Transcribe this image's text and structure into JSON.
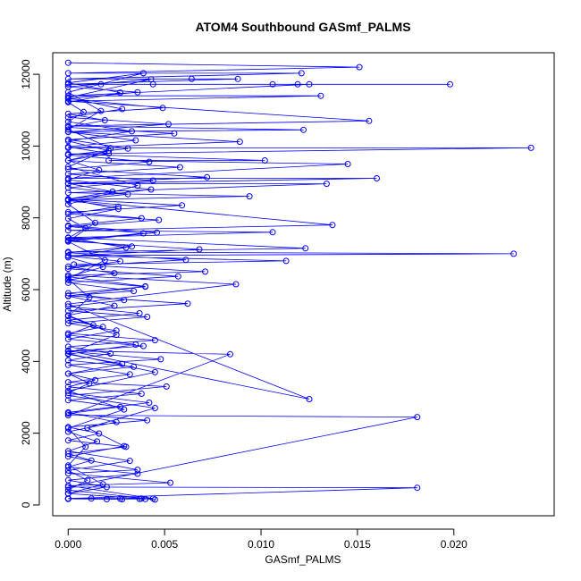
{
  "chart_data": {
    "type": "scatter",
    "title": "ATOM4 Southbound GASmf_PALMS",
    "xlabel": "GASmf_PALMS",
    "ylabel": "Altitude (m)",
    "xlim": [
      -0.0008,
      0.0252
    ],
    "ylim": [
      -300,
      12600
    ],
    "x_ticks": [
      0.0,
      0.005,
      0.01,
      0.015,
      0.02
    ],
    "x_tick_labels": [
      "0.000",
      "0.005",
      "0.010",
      "0.015",
      "0.020"
    ],
    "y_ticks": [
      0,
      2000,
      4000,
      6000,
      8000,
      10000,
      12000
    ],
    "y_tick_labels": [
      "0",
      "2000",
      "4000",
      "6000",
      "8000",
      "10000",
      "12000"
    ],
    "grid": false,
    "legend": "none",
    "series": [
      {
        "color": "#0000ff",
        "marker": "open-circle",
        "line": true,
        "x": [
          0.0,
          0.0151,
          0.0,
          0.0121,
          0.0,
          0.0064,
          0.0088,
          0.0,
          0.0119,
          0.0,
          0.0106,
          0.0198,
          0.0017,
          0.0044,
          0.0125,
          0.0,
          0.0131,
          0.0,
          0.0156,
          0.0,
          0.0122,
          0.0,
          0.0089,
          0.0,
          0.024,
          0.0,
          0.0102,
          0.0021,
          0.0145,
          0.0,
          0.016,
          0.0,
          0.0134,
          0.0,
          0.0094,
          0.0,
          0.0137,
          0.0,
          0.0106,
          0.0,
          0.0123,
          0.0,
          0.0231,
          0.0,
          0.0113,
          0.0003,
          0.0071,
          0.0,
          0.0087,
          0.0,
          0.0125,
          0.0,
          0.0084,
          0.0,
          0.0181,
          0.0,
          0.0181,
          0.0,
          0.0044,
          0.0,
          0.0053,
          0.0,
          0.0036,
          0.0,
          0.0029,
          0.001,
          0.0045,
          0.0,
          0.0051,
          0.0,
          0.0032,
          0.0,
          0.0048,
          0.0,
          0.0039,
          0.0,
          0.0025,
          0.0,
          0.0041,
          0.0,
          0.0062,
          0.0,
          0.0034,
          0.0,
          0.0057,
          0.0,
          0.0027,
          0.0,
          0.0068,
          0.0,
          0.0046,
          0.0,
          0.0038,
          0.0,
          0.0059,
          0.0,
          0.0023,
          0.0,
          0.0072,
          0.0,
          0.0042,
          0.0,
          0.0031,
          0.0,
          0.0055,
          0.0,
          0.0019,
          0.0,
          0.0049,
          0.0,
          0.0036,
          0.0,
          0.0043,
          0.0,
          0.0028,
          0.0,
          0.0052,
          0.0,
          0.0035,
          0.0,
          0.0021,
          0.0,
          0.0058,
          0.0,
          0.0044,
          0.0,
          0.0031,
          0.0,
          0.0026,
          0.0,
          0.0047,
          0.0,
          0.0039,
          0.0,
          0.0033,
          0.0,
          0.0061,
          0.0,
          0.0024,
          0.0,
          0.004,
          0.0,
          0.0029,
          0.0,
          0.0037,
          0.0,
          0.0018,
          0.0,
          0.0045,
          0.0,
          0.0022,
          0.0,
          0.0034,
          0.0,
          0.0014,
          0.0,
          0.0038,
          0.0,
          0.0027,
          0.0,
          0.0041,
          0.0,
          0.0016,
          0.0,
          0.003,
          0.0,
          0.0012,
          0.0,
          0.0036,
          0.0,
          0.002,
          0.0,
          0.0045,
          0.0,
          0.001,
          0.0,
          0.0032,
          0.0,
          0.0015,
          0.0,
          0.0025,
          0.0,
          0.0042,
          0.0,
          0.0011,
          0.0,
          0.0028,
          0.0,
          0.0035,
          0.0,
          0.0013,
          0.0,
          0.0024,
          0.0,
          0.004,
          0.0,
          0.0018,
          0.0,
          0.003,
          0.0,
          0.0009,
          0.0,
          0.0026,
          0.0,
          0.0043,
          0.0,
          0.0016,
          0.0,
          0.0021,
          0.0,
          0.0033,
          0.0,
          0.0008,
          0.0,
          0.0027,
          0.0,
          0.0039,
          0.0,
          0.0017,
          0.0,
          0.0022,
          0.0,
          0.0036,
          0.0,
          0.0014,
          0.0,
          0.0019,
          0.0,
          0.0011,
          0.0,
          0.0025,
          0.0,
          0.0045,
          0.0,
          0.0029,
          0.0,
          0.0009,
          0.0,
          0.0018,
          0.0,
          0.0038,
          0.0,
          0.0012,
          0.0,
          0.0028,
          0.0,
          0.0037,
          0.002,
          0.0027,
          0.004
        ],
        "y": [
          12320,
          12200,
          12030,
          12030,
          11870,
          11870,
          11870,
          11720,
          11720,
          11720,
          11720,
          11720,
          11720,
          11720,
          11720,
          11400,
          11400,
          11250,
          10700,
          10560,
          10450,
          10400,
          10120,
          9950,
          9950,
          9780,
          9600,
          9600,
          9500,
          9100,
          9100,
          8950,
          8950,
          8700,
          8600,
          8500,
          7800,
          7650,
          7600,
          7450,
          7150,
          7050,
          7000,
          6950,
          6800,
          6700,
          6500,
          6400,
          6150,
          5600,
          2950,
          4300,
          4200,
          2500,
          2450,
          500,
          480,
          180,
          180,
          540,
          620,
          880,
          980,
          1350,
          1640,
          2150,
          2700,
          3050,
          3300,
          3420,
          3640,
          3900,
          4060,
          4280,
          4430,
          4620,
          4860,
          5060,
          5240,
          5410,
          5610,
          5830,
          5960,
          6190,
          6370,
          6580,
          6790,
          6940,
          7120,
          7350,
          7590,
          7780,
          7990,
          8160,
          8350,
          8520,
          8730,
          8960,
          9130,
          9360,
          9560,
          9750,
          9930,
          10180,
          10350,
          10520,
          10720,
          10900,
          11060,
          11320,
          11500,
          11650,
          11860,
          11350,
          11030,
          10800,
          10610,
          10390,
          10160,
          9980,
          9790,
          9600,
          9410,
          9220,
          9040,
          8840,
          8660,
          8480,
          8310,
          8110,
          7940,
          7760,
          7570,
          7380,
          7200,
          7030,
          6830,
          6640,
          6460,
          6270,
          6080,
          5900,
          5710,
          5530,
          5340,
          5150,
          4960,
          4780,
          4590,
          4410,
          4220,
          4030,
          3850,
          3660,
          3480,
          3290,
          3100,
          2920,
          2730,
          2550,
          2360,
          2170,
          1990,
          1800,
          1620,
          1430,
          1240,
          1060,
          870,
          690,
          500,
          320,
          150,
          420,
          690,
          960,
          1230,
          1500,
          1770,
          2040,
          2310,
          2580,
          2850,
          3120,
          3390,
          3660,
          3930,
          4200,
          4470,
          4740,
          5010,
          5280,
          5550,
          5820,
          6090,
          6360,
          6630,
          6900,
          7170,
          7440,
          7710,
          7980,
          8250,
          8520,
          8790,
          9060,
          9330,
          9600,
          9870,
          10140,
          10410,
          10680,
          10950,
          11220,
          11490,
          11760,
          12030,
          11500,
          10980,
          10460,
          9940,
          9420,
          8900,
          8380,
          7860,
          7340,
          6820,
          6300,
          5780,
          5260,
          4740,
          4220,
          3700,
          3180,
          2660,
          2140,
          1620,
          1100,
          580,
          320,
          180,
          170,
          180,
          170,
          160,
          180,
          170,
          160,
          175,
          165
        ]
      }
    ]
  }
}
